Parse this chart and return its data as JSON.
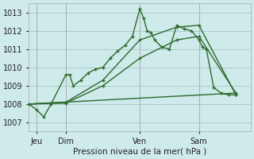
{
  "title": "Pression niveau de la mer( hPa )",
  "bg_color": "#ceeaea",
  "grid_color": "#aacccc",
  "line_color": "#2d6a2d",
  "ylim": [
    1006.5,
    1013.5
  ],
  "yticks": [
    1007,
    1008,
    1009,
    1010,
    1011,
    1012,
    1013
  ],
  "xlim": [
    0,
    30
  ],
  "day_positions": [
    1,
    5,
    15,
    23
  ],
  "day_labels": [
    "Jeu",
    "Dim",
    "Ven",
    "Sam"
  ],
  "vline_positions": [
    1,
    5,
    15,
    23
  ],
  "series1_x": [
    0,
    1,
    2,
    3,
    5,
    5.5,
    6,
    7,
    8,
    9,
    10,
    11,
    12,
    13,
    14,
    15,
    15.5,
    16,
    16.5,
    17,
    18,
    19,
    20,
    21,
    22,
    23,
    23.5,
    24,
    25,
    26,
    27,
    28
  ],
  "series1_y": [
    1008.0,
    1007.7,
    1007.3,
    1008.0,
    1009.6,
    1009.6,
    1009.0,
    1009.3,
    1009.7,
    1009.9,
    1010.0,
    1010.5,
    1010.9,
    1011.2,
    1011.7,
    1013.2,
    1012.7,
    1012.0,
    1011.9,
    1011.5,
    1011.1,
    1011.0,
    1012.3,
    1012.1,
    1012.0,
    1011.5,
    1011.1,
    1011.0,
    1008.9,
    1008.6,
    1008.5,
    1008.5
  ],
  "series2_x": [
    0,
    5,
    10,
    15,
    20,
    23,
    28
  ],
  "series2_y": [
    1008.0,
    1008.1,
    1009.3,
    1011.5,
    1012.2,
    1012.3,
    1008.5
  ],
  "series3_x": [
    0,
    5,
    10,
    15,
    20,
    23,
    28
  ],
  "series3_y": [
    1008.0,
    1008.05,
    1009.0,
    1010.5,
    1011.5,
    1011.7,
    1008.6
  ],
  "series4_x": [
    0,
    28
  ],
  "series4_y": [
    1008.0,
    1008.6
  ]
}
